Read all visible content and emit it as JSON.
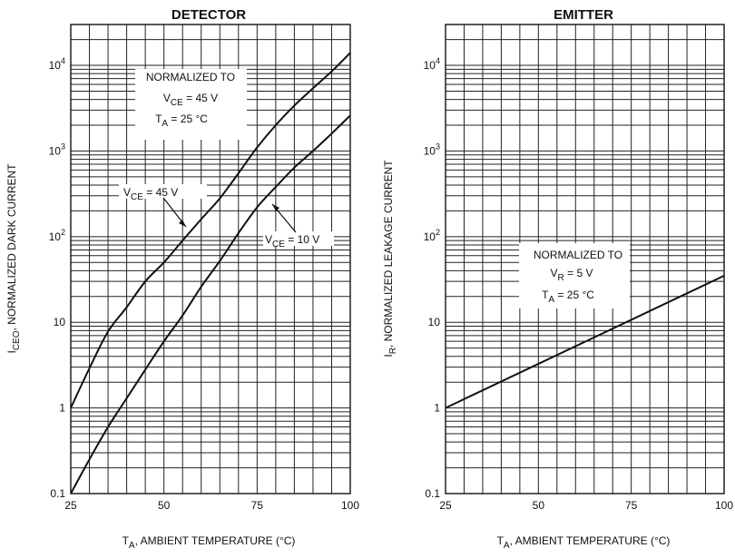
{
  "chart_data": [
    {
      "type": "line",
      "title": "DETECTOR",
      "xlabel_main": "T",
      "xlabel_sub": "A",
      "xlabel_rest": ", AMBIENT TEMPERATURE (°C)",
      "ylabel_main": "I",
      "ylabel_sub": "CEO",
      "ylabel_rest": ", NORMALIZED DARK CURRENT",
      "xlim": [
        25,
        100
      ],
      "ylim": [
        0.1,
        30000
      ],
      "yscale": "log",
      "grid": true,
      "xticks": [
        "25",
        "50",
        "75",
        "100"
      ],
      "yticks": [
        {
          "value": 0.1,
          "base": "0.1",
          "exp": ""
        },
        {
          "value": 1,
          "base": "1",
          "exp": ""
        },
        {
          "value": 10,
          "base": "10",
          "exp": ""
        },
        {
          "value": 100,
          "base": "10",
          "exp": "2"
        },
        {
          "value": 1000,
          "base": "10",
          "exp": "3"
        },
        {
          "value": 10000,
          "base": "10",
          "exp": "4"
        }
      ],
      "note": {
        "line1": "NORMALIZED TO",
        "line2_main": "V",
        "line2_sub": "CE",
        "line2_rest": " = 45 V",
        "line3_main": "T",
        "line3_sub": "A",
        "line3_rest": " = 25 °C"
      },
      "series": [
        {
          "label_main": "V",
          "label_sub": "CE",
          "label_rest": " = 45 V",
          "x": [
            25,
            30,
            35,
            40,
            45,
            50,
            55,
            60,
            65,
            70,
            75,
            80,
            85,
            90,
            95,
            100
          ],
          "y": [
            1,
            2.9,
            7.8,
            15,
            30,
            50,
            90,
            160,
            280,
            550,
            1100,
            2000,
            3400,
            5400,
            8500,
            14000
          ]
        },
        {
          "label_main": "V",
          "label_sub": "CE",
          "label_rest": " = 10 V",
          "x": [
            25,
            30,
            35,
            40,
            45,
            50,
            55,
            60,
            65,
            70,
            75,
            80,
            85,
            90,
            95,
            100
          ],
          "y": [
            0.1,
            0.25,
            0.6,
            1.3,
            2.8,
            6,
            12,
            26,
            52,
            110,
            220,
            380,
            640,
            1000,
            1600,
            2600
          ]
        }
      ]
    },
    {
      "type": "line",
      "title": "EMITTER",
      "xlabel_main": "T",
      "xlabel_sub": "A",
      "xlabel_rest": ", AMBIENT TEMPERATURE (°C)",
      "ylabel_main": "I",
      "ylabel_sub": "R",
      "ylabel_rest": ", NORMALIZED LEAKAGE CURRENT",
      "xlim": [
        25,
        100
      ],
      "ylim": [
        0.1,
        30000
      ],
      "yscale": "log",
      "grid": true,
      "xticks": [
        "25",
        "50",
        "75",
        "100"
      ],
      "yticks": [
        {
          "value": 0.1,
          "base": "0.1",
          "exp": ""
        },
        {
          "value": 1,
          "base": "1",
          "exp": ""
        },
        {
          "value": 10,
          "base": "10",
          "exp": ""
        },
        {
          "value": 100,
          "base": "10",
          "exp": "2"
        },
        {
          "value": 1000,
          "base": "10",
          "exp": "3"
        },
        {
          "value": 10000,
          "base": "10",
          "exp": "4"
        }
      ],
      "note": {
        "line1": "NORMALIZED TO",
        "line2_main": "V",
        "line2_sub": "R",
        "line2_rest": " = 5 V",
        "line3_main": "T",
        "line3_sub": "A",
        "line3_rest": " = 25 °C"
      },
      "series": [
        {
          "x": [
            25,
            100
          ],
          "y": [
            1,
            35
          ]
        }
      ]
    }
  ]
}
